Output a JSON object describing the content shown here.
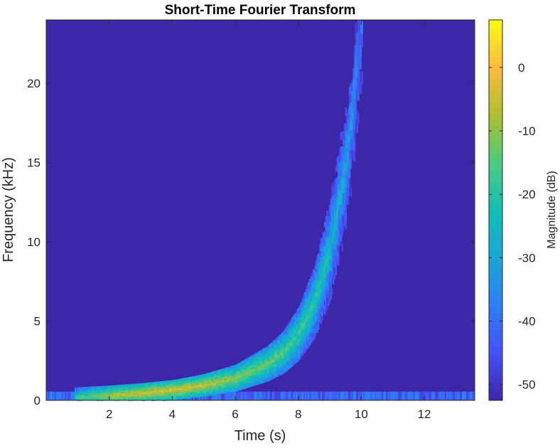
{
  "chart_data": {
    "type": "heatmap",
    "title": "Short-Time Fourier Transform",
    "xlabel": "Time (s)",
    "ylabel": "Frequency (kHz)",
    "xlim": [
      0,
      13.6
    ],
    "ylim": [
      0,
      24
    ],
    "xticks": [
      2,
      4,
      6,
      8,
      10,
      12
    ],
    "yticks": [
      0,
      5,
      10,
      15,
      20
    ],
    "colorbar": {
      "label": "Magnitude (dB)",
      "range": [
        -52.5,
        7.5
      ],
      "ticks": [
        0,
        -10,
        -20,
        -30,
        -40,
        -50
      ],
      "colormap": "parula"
    },
    "background_level_db": -52,
    "noise_floor": {
      "freq_max_khz": 0.55,
      "t_range": [
        0,
        13.6
      ],
      "level_db": -42
    },
    "chirp_ridge": {
      "description": "exponential chirp; peak frequency vs time",
      "t": [
        0.5,
        1,
        2,
        3,
        4,
        5,
        6,
        7,
        7.5,
        8,
        8.5,
        9,
        9.5,
        10
      ],
      "freq_khz": [
        0.15,
        0.2,
        0.3,
        0.45,
        0.65,
        0.95,
        1.4,
        2.3,
        3.0,
        4.2,
        6.2,
        9.6,
        14.8,
        23.5
      ],
      "peak_db": [
        -30,
        -12,
        -2,
        1,
        2,
        0,
        -4,
        -8,
        -10,
        -12,
        -15,
        -20,
        -26,
        -35
      ]
    }
  }
}
